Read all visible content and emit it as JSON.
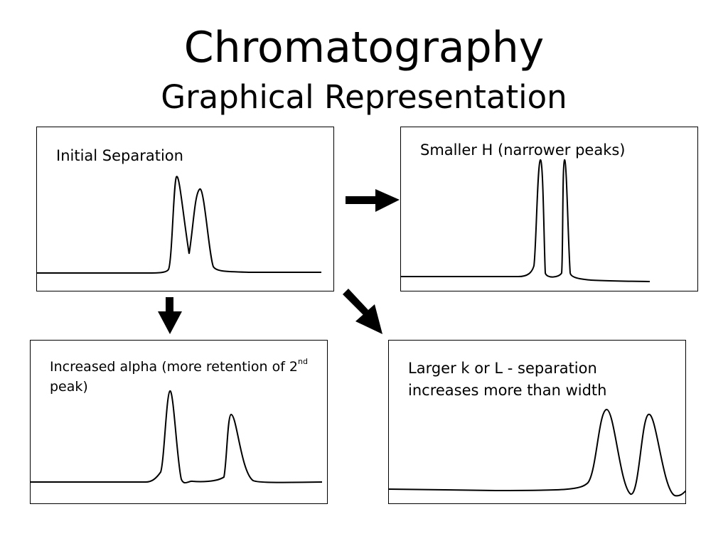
{
  "slide": {
    "title": "Chromatography",
    "subtitle": "Graphical Representation"
  },
  "panels": {
    "initial": {
      "label": "Initial Separation"
    },
    "smaller_h": {
      "label": "Smaller H (narrower peaks)"
    },
    "alpha": {
      "label_main": "Increased alpha (more retention of 2",
      "label_sup": "nd",
      "label_end": " peak)"
    },
    "larger_k": {
      "label": "Larger k or L -  separation increases more than width"
    }
  },
  "colors": {
    "line": "#000000",
    "background": "#ffffff"
  },
  "icons": [
    "arrow-right-icon",
    "arrow-down-icon",
    "arrow-down-right-icon"
  ]
}
